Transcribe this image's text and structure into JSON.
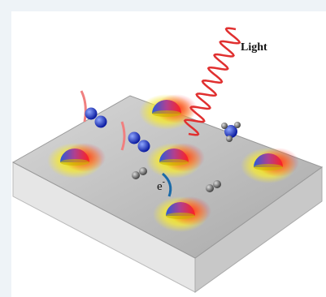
{
  "labels": {
    "light": "Light",
    "electron": "e",
    "electron_charge": "-"
  }
}
